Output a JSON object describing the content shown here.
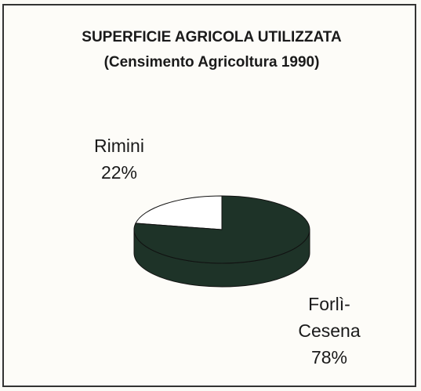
{
  "chart_data": {
    "type": "pie",
    "title": "SUPERFICIE AGRICOLA UTILIZZATA",
    "subtitle": "(Censimento Agricoltura 1990)",
    "categories": [
      "Rimini",
      "Forlì-Cesena"
    ],
    "values": [
      22,
      78
    ],
    "value_labels": [
      "22%",
      "78%"
    ],
    "colors": [
      "#ffffff",
      "#1e3328"
    ]
  }
}
